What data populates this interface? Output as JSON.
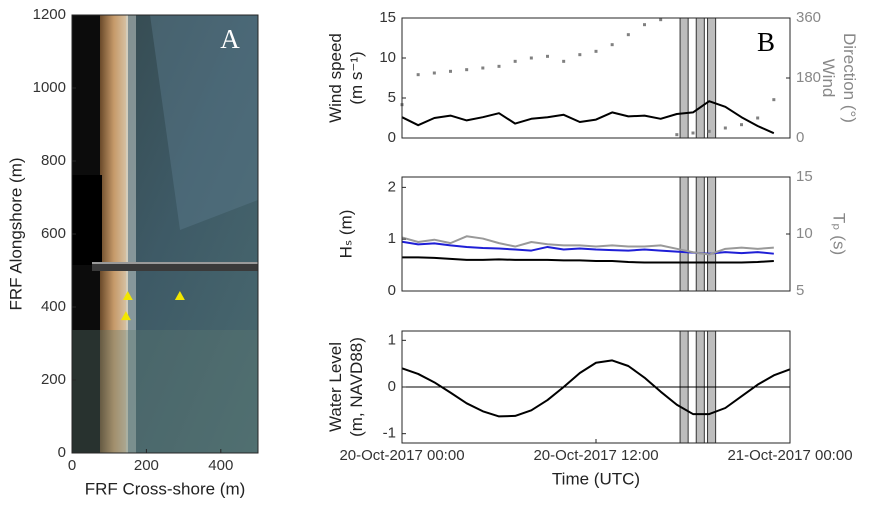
{
  "chart_data": [
    {
      "type": "scatter",
      "panel_label": "A",
      "xlabel": "FRF Cross-shore (m)",
      "ylabel": [
        "FRF Alongshore (m)"
      ],
      "xlim": [
        0,
        500
      ],
      "xticks": [
        0,
        200,
        400
      ],
      "ylim": [
        0,
        1200
      ],
      "yticks": [
        0,
        200,
        400,
        600,
        800,
        1000,
        1200
      ],
      "x": [
        150,
        145,
        290
      ],
      "values": [
        430,
        375,
        430
      ],
      "color": "#f2e600"
    },
    {
      "type": "line",
      "panel_label": "B",
      "ylabel": [
        "Wind speed",
        "(m s⁻¹)"
      ],
      "y2label": [
        "Wind",
        "Direction (°)"
      ],
      "xlim": [
        0,
        24
      ],
      "ylim": [
        0,
        15
      ],
      "yticks": [
        0,
        5,
        10,
        15
      ],
      "y2lim": [
        0,
        360
      ],
      "y2ticks": [
        0,
        180,
        360
      ],
      "shaded_intervals": [
        [
          17.2,
          17.7
        ],
        [
          18.2,
          18.7
        ],
        [
          18.9,
          19.4
        ]
      ],
      "x": [
        0,
        1,
        2,
        3,
        4,
        5,
        6,
        7,
        8,
        9,
        10,
        11,
        12,
        13,
        14,
        15,
        16,
        17,
        18,
        19,
        20,
        21,
        22,
        23
      ],
      "series": [
        {
          "color": "#000000",
          "style": "solid",
          "values": [
            2.6,
            1.6,
            2.5,
            2.8,
            2.2,
            2.6,
            3.1,
            1.8,
            2.4,
            2.6,
            2.9,
            2.0,
            2.3,
            3.2,
            2.7,
            2.8,
            2.4,
            3.0,
            3.2,
            4.6,
            3.9,
            2.6,
            1.5,
            0.6
          ]
        },
        {
          "color": "#808080",
          "style": "dotted",
          "axis": "y2",
          "values": [
            100,
            190,
            195,
            200,
            205,
            210,
            215,
            230,
            240,
            245,
            230,
            250,
            260,
            280,
            310,
            340,
            355,
            10,
            15,
            20,
            30,
            40,
            60,
            115
          ]
        }
      ]
    },
    {
      "type": "line",
      "ylabel": [
        "Hₛ (m)"
      ],
      "y2label": [
        "Tₚ (s)"
      ],
      "xlim": [
        0,
        24
      ],
      "ylim": [
        0,
        2.2
      ],
      "yticks": [
        0,
        1,
        2
      ],
      "y2lim": [
        5,
        15
      ],
      "y2ticks": [
        5,
        10,
        15
      ],
      "shaded_intervals": [
        [
          17.2,
          17.7
        ],
        [
          18.2,
          18.7
        ],
        [
          18.9,
          19.4
        ]
      ],
      "x": [
        0,
        1,
        2,
        3,
        4,
        5,
        6,
        7,
        8,
        9,
        10,
        11,
        12,
        13,
        14,
        15,
        16,
        17,
        18,
        19,
        20,
        21,
        22,
        23
      ],
      "series": [
        {
          "color": "#1f1fd6",
          "style": "solid",
          "values": [
            0.95,
            0.9,
            0.92,
            0.88,
            0.85,
            0.83,
            0.82,
            0.8,
            0.78,
            0.85,
            0.8,
            0.82,
            0.8,
            0.79,
            0.78,
            0.8,
            0.78,
            0.76,
            0.74,
            0.72,
            0.75,
            0.73,
            0.75,
            0.72
          ]
        },
        {
          "color": "#000000",
          "style": "solid",
          "values": [
            0.65,
            0.65,
            0.64,
            0.62,
            0.6,
            0.6,
            0.61,
            0.6,
            0.6,
            0.6,
            0.59,
            0.59,
            0.58,
            0.58,
            0.56,
            0.55,
            0.55,
            0.55,
            0.55,
            0.55,
            0.55,
            0.55,
            0.56,
            0.58
          ]
        },
        {
          "color": "#999999",
          "style": "solid",
          "axis": "y2",
          "values": [
            9.7,
            9.3,
            9.5,
            9.2,
            9.8,
            9.6,
            9.2,
            8.9,
            9.3,
            9.1,
            9.0,
            9.0,
            8.9,
            9.0,
            8.9,
            8.9,
            9.0,
            8.7,
            8.4,
            8.2,
            8.7,
            8.8,
            8.7,
            8.8
          ]
        }
      ]
    },
    {
      "type": "line",
      "ylabel": [
        "Water Level",
        "(m, NAVD88)"
      ],
      "xlabel": "Time (UTC)",
      "xlim": [
        0,
        24
      ],
      "xticks": [
        {
          "value": 0,
          "label": "20-Oct-2017 00:00"
        },
        {
          "value": 12,
          "label": "20-Oct-2017 12:00"
        },
        {
          "value": 24,
          "label": "21-Oct-2017 00:00"
        }
      ],
      "ylim": [
        -1.2,
        1.2
      ],
      "yticks": [
        -1,
        0,
        1
      ],
      "reference_line": 0,
      "shaded_intervals": [
        [
          17.2,
          17.7
        ],
        [
          18.2,
          18.7
        ],
        [
          18.9,
          19.4
        ]
      ],
      "x": [
        0,
        1,
        2,
        3,
        4,
        5,
        6,
        7,
        8,
        9,
        10,
        11,
        12,
        13,
        14,
        15,
        16,
        17,
        18,
        19,
        20,
        21,
        22,
        23,
        24
      ],
      "series": [
        {
          "color": "#000000",
          "style": "solid",
          "values": [
            0.4,
            0.28,
            0.1,
            -0.12,
            -0.35,
            -0.52,
            -0.63,
            -0.62,
            -0.5,
            -0.28,
            0.0,
            0.3,
            0.52,
            0.57,
            0.45,
            0.2,
            -0.1,
            -0.38,
            -0.58,
            -0.58,
            -0.45,
            -0.2,
            0.05,
            0.25,
            0.38
          ]
        }
      ]
    }
  ]
}
